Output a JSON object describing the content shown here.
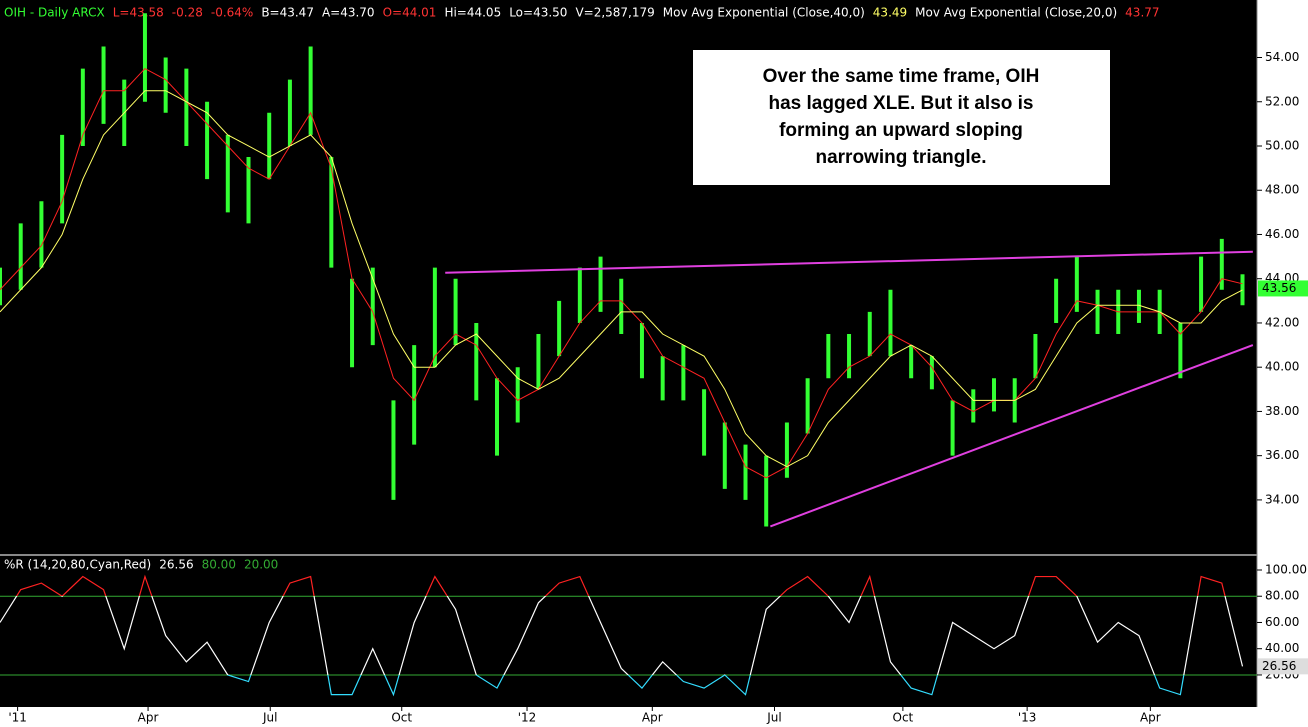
{
  "header": [
    {
      "text": "OIH - Daily  ARCX",
      "color": "#33ff33"
    },
    {
      "text": "L=43.58",
      "color": "#ff3333"
    },
    {
      "text": "-0.28",
      "color": "#ff3333"
    },
    {
      "text": "-0.64%",
      "color": "#ff3333"
    },
    {
      "text": "B=43.47",
      "color": "#ffffff"
    },
    {
      "text": "A=43.70",
      "color": "#ffffff"
    },
    {
      "text": "O=44.01",
      "color": "#ff3333"
    },
    {
      "text": "Hi=44.05",
      "color": "#ffffff"
    },
    {
      "text": "Lo=43.50",
      "color": "#ffffff"
    },
    {
      "text": "V=2,587,179",
      "color": "#ffffff"
    },
    {
      "text": "Mov Avg Exponential (Close,40,0)",
      "color": "#ffffff"
    },
    {
      "text": "43.49",
      "color": "#ffff66"
    },
    {
      "text": "Mov Avg Exponential (Close,20,0)",
      "color": "#ffffff"
    },
    {
      "text": "43.77",
      "color": "#ff3333"
    }
  ],
  "annotation": [
    "Over the same time frame, OIH",
    "has lagged XLE.  But it also is",
    "forming an upward sloping",
    "narrowing triangle."
  ],
  "chart_data": [
    {
      "type": "hilo",
      "x": [
        0,
        2,
        4,
        6,
        8,
        10,
        12,
        14,
        16,
        18,
        20,
        22,
        24,
        26,
        28,
        30,
        32,
        34,
        36,
        38,
        40,
        42,
        44,
        46,
        48,
        50,
        52,
        54,
        56,
        58,
        60,
        62,
        64,
        66,
        68,
        70,
        72,
        74,
        76,
        78,
        80,
        82,
        84,
        86,
        88,
        90,
        92,
        94,
        96,
        98,
        100,
        102,
        104,
        106,
        108,
        110,
        112,
        114,
        116,
        118,
        120
      ],
      "low": [
        42.8,
        43.5,
        44.5,
        46.5,
        50,
        51,
        50,
        52,
        51.5,
        50,
        48.5,
        47,
        46.5,
        48.5,
        50,
        50.5,
        44.5,
        40,
        41,
        34,
        36.5,
        40,
        41,
        38.5,
        36,
        37.5,
        39,
        40.5,
        42,
        42.5,
        41.5,
        39.5,
        38.5,
        38.5,
        36,
        34.5,
        34,
        32.8,
        35,
        37,
        39.5,
        39.5,
        40.5,
        40.5,
        39.5,
        39,
        36,
        37.5,
        38,
        37.5,
        39.5,
        42,
        42.5,
        41.5,
        41.5,
        42,
        41.5,
        39.5,
        42.5,
        43.5,
        42.8
      ],
      "high": [
        44.5,
        46.5,
        47.5,
        50.5,
        53.5,
        54.5,
        53,
        56,
        54,
        53.5,
        52,
        50.5,
        49.5,
        51.5,
        53,
        54.5,
        49.5,
        44,
        44.5,
        38.5,
        41,
        44.5,
        44,
        42,
        39.5,
        40,
        41.5,
        43,
        44.5,
        45,
        44,
        42,
        40.5,
        41,
        39,
        37.5,
        36.5,
        36,
        37.5,
        39.5,
        41.5,
        41.5,
        42.5,
        43.5,
        41,
        40.5,
        38.5,
        39,
        39.5,
        39.5,
        41.5,
        44,
        45,
        43.5,
        43.5,
        43.5,
        43.5,
        42,
        45,
        45.8,
        44.2
      ],
      "color": "#33ff33",
      "series": [
        {
          "name": "Mov Avg Exponential (Close,20,0)",
          "color": "#ff2222",
          "values": [
            43.5,
            44.5,
            45.5,
            47.5,
            50.5,
            52.5,
            52.5,
            53.5,
            53,
            52,
            51,
            50,
            49,
            48.5,
            50,
            51.5,
            49,
            44,
            42.5,
            39.5,
            38.5,
            40.5,
            41.5,
            41,
            39.5,
            38.5,
            39,
            40.5,
            42,
            43,
            43,
            42,
            40.5,
            40,
            39.5,
            37.5,
            35.5,
            35,
            35.5,
            37,
            39,
            40,
            40.5,
            41.5,
            41,
            40,
            38.5,
            38,
            38.5,
            38.5,
            39.5,
            41.5,
            43,
            42.8,
            42.5,
            42.5,
            42.5,
            41.5,
            42.5,
            44,
            43.77
          ]
        },
        {
          "name": "Mov Avg Exponential (Close,40,0)",
          "color": "#ffff66",
          "values": [
            42.5,
            43.5,
            44.5,
            46,
            48.5,
            50.5,
            51.5,
            52.5,
            52.5,
            52,
            51.5,
            50.5,
            50,
            49.5,
            50,
            50.5,
            49.5,
            46.5,
            44,
            41.5,
            40,
            40,
            41,
            41.5,
            40.5,
            39.5,
            39,
            39.5,
            40.5,
            41.5,
            42.5,
            42.5,
            41.5,
            41,
            40.5,
            39,
            37,
            36,
            35.5,
            36,
            37.5,
            38.5,
            39.5,
            40.5,
            41,
            40.5,
            39.5,
            38.5,
            38.5,
            38.5,
            39,
            40.5,
            42,
            42.8,
            42.8,
            42.8,
            42.5,
            42,
            42,
            43,
            43.49
          ]
        }
      ],
      "trendlines": [
        {
          "color": "#e040e0",
          "x": [
            43,
            121
          ],
          "y": [
            44.27,
            45.22
          ]
        },
        {
          "color": "#e040e0",
          "x": [
            74.4,
            121
          ],
          "y": [
            32.8,
            41.0
          ]
        }
      ],
      "last_price": {
        "value": 43.56,
        "label": "43.56",
        "color": "#33ff33"
      },
      "xlim": [
        0,
        121.4
      ],
      "xticks": [
        {
          "value": 1.7,
          "label": "'11"
        },
        {
          "value": 14.3,
          "label": "Apr"
        },
        {
          "value": 26.1,
          "label": "Jul"
        },
        {
          "value": 38.8,
          "label": "Oct"
        },
        {
          "value": 50.9,
          "label": "'12"
        },
        {
          "value": 63,
          "label": "Apr"
        },
        {
          "value": 74.8,
          "label": "Jul"
        },
        {
          "value": 87.2,
          "label": "Oct"
        },
        {
          "value": 99.2,
          "label": "'13"
        },
        {
          "value": 111.1,
          "label": "Apr"
        }
      ],
      "ylim": [
        31.6,
        56.6
      ],
      "yticks": [
        {
          "value": 34,
          "label": "34.00"
        },
        {
          "value": 36,
          "label": "36.00"
        },
        {
          "value": 38,
          "label": "38.00"
        },
        {
          "value": 40,
          "label": "40.00"
        },
        {
          "value": 42,
          "label": "42.00"
        },
        {
          "value": 44,
          "label": "44.00"
        },
        {
          "value": 46,
          "label": "46.00"
        },
        {
          "value": 48,
          "label": "48.00"
        },
        {
          "value": 50,
          "label": "50.00"
        },
        {
          "value": 52,
          "label": "52.00"
        },
        {
          "value": 54,
          "label": "54.00"
        }
      ]
    },
    {
      "type": "line",
      "title": "%R (14,20,80,Cyan,Red)",
      "current": {
        "value": 26.56,
        "label": "26.56"
      },
      "levels": [
        {
          "value": 80,
          "label": "80.00",
          "color": "#33aa33"
        },
        {
          "value": 20,
          "label": "20.00",
          "color": "#33aa33"
        }
      ],
      "colors": {
        "high": "#ff2222",
        "mid": "#ffffff",
        "low": "#33ddff"
      },
      "x": [
        0,
        2,
        4,
        6,
        8,
        10,
        12,
        14,
        16,
        18,
        20,
        22,
        24,
        26,
        28,
        30,
        32,
        34,
        36,
        38,
        40,
        42,
        44,
        46,
        48,
        50,
        52,
        54,
        56,
        58,
        60,
        62,
        64,
        66,
        68,
        70,
        72,
        74,
        76,
        78,
        80,
        82,
        84,
        86,
        88,
        90,
        92,
        94,
        96,
        98,
        100,
        102,
        104,
        106,
        108,
        110,
        112,
        114,
        116,
        118,
        120
      ],
      "values": [
        60,
        85,
        90,
        80,
        95,
        85,
        40,
        95,
        50,
        30,
        45,
        20,
        15,
        60,
        90,
        95,
        5,
        5,
        40,
        5,
        60,
        95,
        70,
        20,
        10,
        40,
        75,
        90,
        95,
        60,
        25,
        10,
        30,
        15,
        10,
        20,
        5,
        70,
        85,
        95,
        80,
        60,
        95,
        30,
        10,
        5,
        60,
        50,
        40,
        50,
        95,
        95,
        80,
        45,
        60,
        50,
        10,
        5,
        95,
        90,
        26.56
      ],
      "ylim": [
        -2.9,
        109.9
      ],
      "yticks": [
        {
          "value": 20,
          "label": "20.00"
        },
        {
          "value": 40,
          "label": "40.00"
        },
        {
          "value": 60,
          "label": "60.00"
        },
        {
          "value": 80,
          "label": "80.00"
        },
        {
          "value": 100,
          "label": "100.00"
        }
      ]
    }
  ]
}
